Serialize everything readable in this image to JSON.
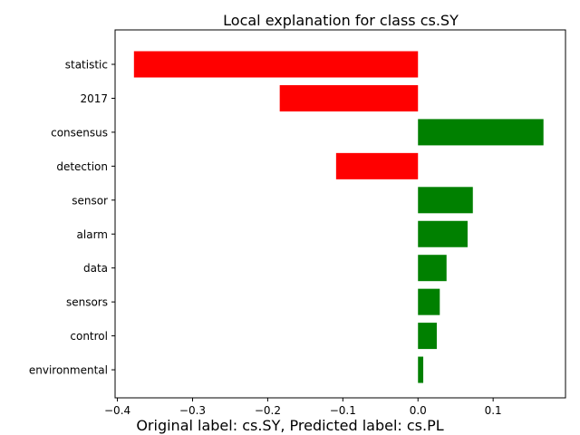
{
  "chart_data": {
    "type": "bar",
    "orientation": "horizontal",
    "title": "Local explanation for class cs.SY",
    "caption": "Original label: cs.SY, Predicted label: cs.PL",
    "categories": [
      "statistic",
      "2017",
      "consensus",
      "detection",
      "sensor",
      "alarm",
      "data",
      "sensors",
      "control",
      "environmental"
    ],
    "values": [
      -0.378,
      -0.184,
      0.167,
      -0.109,
      0.073,
      0.066,
      0.038,
      0.029,
      0.025,
      0.007
    ],
    "colors": {
      "negative": "#ff0000",
      "positive": "#008000"
    },
    "xticks": [
      -0.4,
      -0.3,
      -0.2,
      -0.1,
      0.0,
      0.1
    ],
    "xtick_labels": [
      "−0.4",
      "−0.3",
      "−0.2",
      "−0.1",
      "0.0",
      "0.1"
    ],
    "xlim": [
      -0.4031,
      0.1963
    ],
    "grid": false,
    "legend": "none"
  }
}
